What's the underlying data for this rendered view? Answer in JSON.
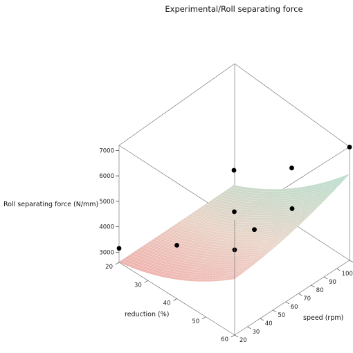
{
  "chart_data": {
    "type": "surface3d",
    "title": "Experimental/Roll separating force",
    "xlabel": "reduction (%)",
    "ylabel": "speed (rpm)",
    "zlabel": "Roll separating force (N/mm)",
    "x_ticks": [
      "20",
      "30",
      "40",
      "50",
      "60"
    ],
    "y_ticks": [
      "20",
      "30",
      "40",
      "50",
      "60",
      "70",
      "80",
      "90",
      "100",
      "110"
    ],
    "z_ticks": [
      "3000",
      "4000",
      "5000",
      "6000",
      "7000"
    ],
    "xlim": [
      20,
      60
    ],
    "ylim": [
      20,
      110
    ],
    "zlim": [
      2600,
      7200
    ],
    "surface": {
      "grid": [
        40,
        40
      ],
      "colormap": [
        "#f2a2a0",
        "#e8d1c4",
        "#a9dcc8"
      ]
    },
    "experimental_points": [
      {
        "reduction": 20,
        "speed": 20,
        "force": 3150
      },
      {
        "reduction": 20,
        "speed": 110,
        "force": 3280
      },
      {
        "reduction": 40,
        "speed": 20,
        "force": 4700
      },
      {
        "reduction": 40,
        "speed": 65,
        "force": 4550
      },
      {
        "reduction": 40,
        "speed": 110,
        "force": 4800
      },
      {
        "reduction": 60,
        "speed": 20,
        "force": 5950
      },
      {
        "reduction": 60,
        "speed": 65,
        "force": 6100
      },
      {
        "reduction": 60,
        "speed": 110,
        "force": 7050
      },
      {
        "reduction": 58,
        "speed": 40,
        "force": 5950
      }
    ]
  }
}
